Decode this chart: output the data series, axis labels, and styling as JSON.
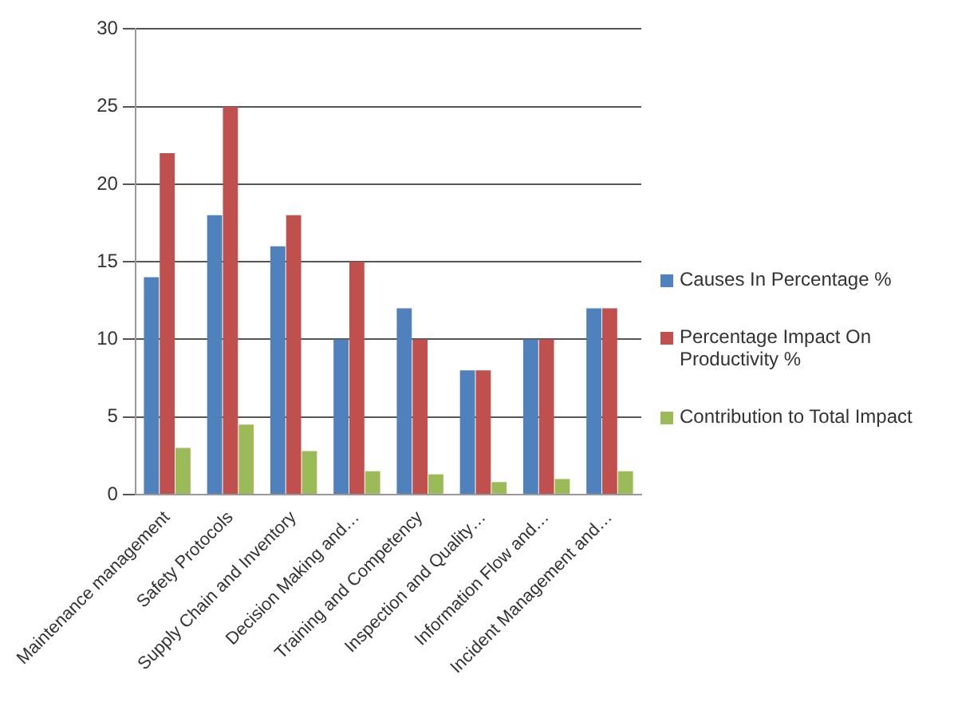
{
  "chart_data": {
    "type": "bar",
    "categories": [
      "Maintenance management",
      "Safety Protocols",
      "Supply Chain and Inventory",
      "Decision Making and…",
      "Training and Competency",
      "Inspection and Quality…",
      "Information Flow and…",
      "Incident Management and…"
    ],
    "series": [
      {
        "name": "Causes In Percentage %",
        "color": "#4f81bd",
        "values": [
          14,
          18,
          16,
          10,
          12,
          8,
          10,
          12
        ]
      },
      {
        "name": "Percentage Impact On Productivity %",
        "color": "#c0504d",
        "values": [
          22,
          25,
          18,
          15,
          10,
          8,
          10,
          12
        ]
      },
      {
        "name": "Contribution to Total Impact",
        "color": "#9bbb59",
        "values": [
          3,
          4.5,
          2.8,
          1.5,
          1.3,
          0.8,
          1,
          1.5
        ]
      }
    ],
    "ylim": [
      0,
      30
    ],
    "yticks": [
      0,
      5,
      10,
      15,
      20,
      25,
      30
    ],
    "grid": "y",
    "legend": "right"
  }
}
